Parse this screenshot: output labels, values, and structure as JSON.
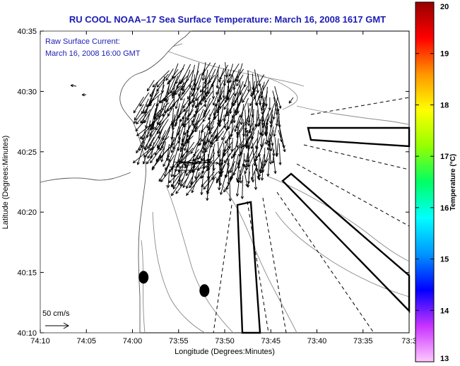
{
  "chart_data": {
    "type": "map",
    "title": "RU COOL  NOAA–17  Sea Surface Temperature:  March 16, 2008 1617 GMT",
    "annotation_line1": "Raw Surface Current:",
    "annotation_line2": "March 16, 2008 16:00 GMT",
    "xlabel": "Longitude (Degrees:Minutes)",
    "ylabel": "Latitude (Degrees:Minutes)",
    "x_ticks": [
      "74:10",
      "74:05",
      "74:00",
      "73:55",
      "73:50",
      "73:45",
      "73:40",
      "73:35",
      "73:3"
    ],
    "y_ticks": [
      "40:10",
      "40:15",
      "40:20",
      "40:25",
      "40:30",
      "40:35"
    ],
    "xlim_minutes_west": [
      70,
      30
    ],
    "ylim_minutes_north": [
      10,
      35
    ],
    "scale_label": "50 cm/s",
    "colorbar": {
      "label": "Temperature (°C)",
      "min": 13,
      "max": 20,
      "ticks": [
        "13",
        "14",
        "15",
        "16",
        "17",
        "18",
        "19",
        "20"
      ],
      "colors": [
        "#ffc8ff",
        "#c832ff",
        "#0000ff",
        "#0096ff",
        "#00ffff",
        "#00ff64",
        "#96ff00",
        "#ffff00",
        "#ff9600",
        "#ff0000",
        "#960000"
      ]
    },
    "dots": [
      {
        "lon_min": 58.8,
        "lat_min": 14.6
      },
      {
        "lon_min": 52.2,
        "lat_min": 13.5
      }
    ],
    "colors": {
      "title": "#1c1cb4",
      "land": "#ffffff",
      "contour": "#888888",
      "vector": "#000000"
    }
  }
}
